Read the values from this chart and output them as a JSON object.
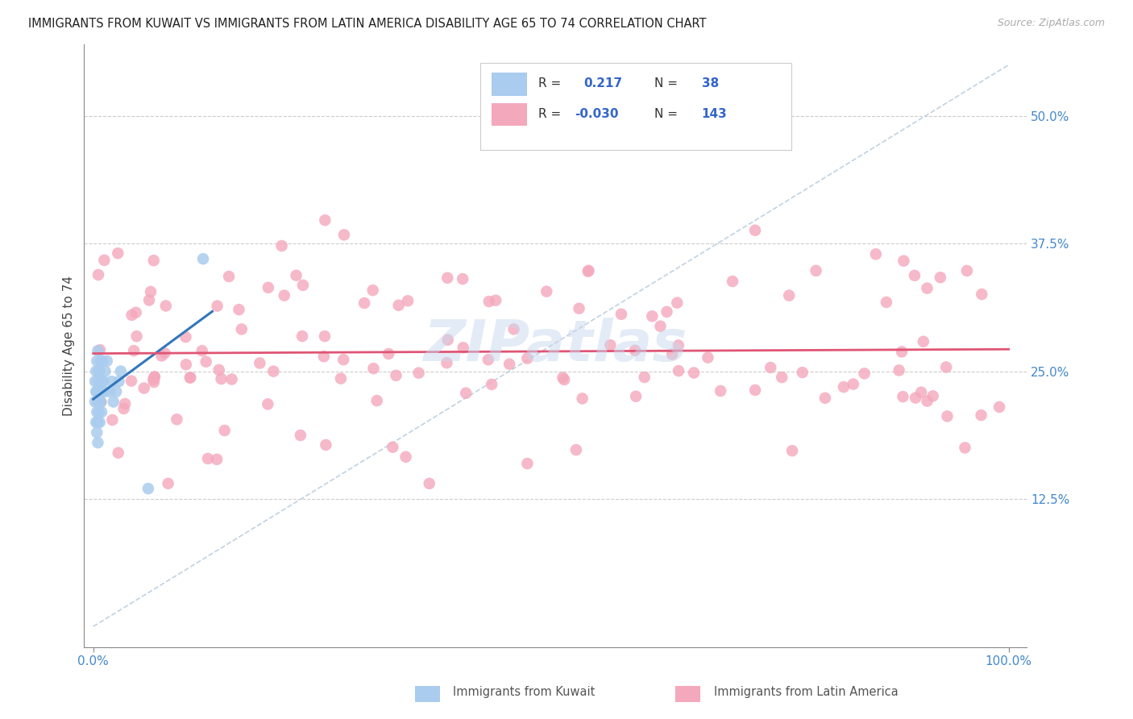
{
  "title": "IMMIGRANTS FROM KUWAIT VS IMMIGRANTS FROM LATIN AMERICA DISABILITY AGE 65 TO 74 CORRELATION CHART",
  "source": "Source: ZipAtlas.com",
  "ylabel": "Disability Age 65 to 74",
  "r_kuwait": 0.217,
  "n_kuwait": 38,
  "r_latin": -0.03,
  "n_latin": 143,
  "color_kuwait": "#aaccee",
  "color_latin": "#f4a8bc",
  "line_color_kuwait": "#3377bb",
  "line_color_latin": "#e05575",
  "diag_color": "#bbccdd",
  "background_color": "#ffffff",
  "grid_color": "#cccccc",
  "axis_color": "#888888",
  "tick_color": "#4488cc",
  "label_color": "#444444",
  "watermark_color": "#c8d8ee",
  "title_fontsize": 10.5,
  "axis_fontsize": 11,
  "legend_fontsize": 11,
  "ytick_vals": [
    0.125,
    0.25,
    0.375,
    0.5
  ],
  "ytick_labels": [
    "12.5%",
    "25.0%",
    "37.5%",
    "50.0%"
  ],
  "xlim": [
    -0.01,
    1.02
  ],
  "ylim": [
    -0.02,
    0.57
  ],
  "scatter_size": 110
}
